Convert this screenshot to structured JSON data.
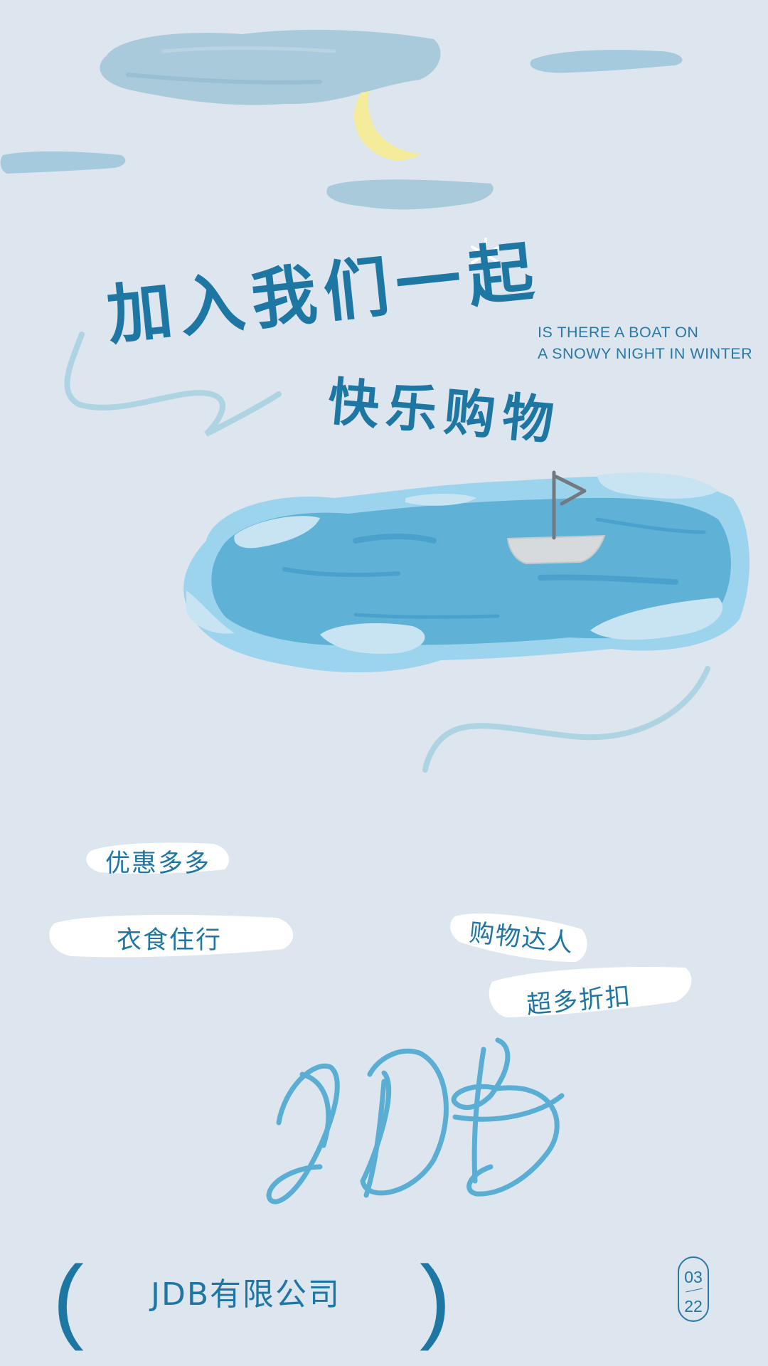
{
  "heading": {
    "line1": "加入我们一起",
    "line2": "快乐购物"
  },
  "subheading": {
    "line1": "IS THERE A BOAT ON",
    "line2": "A SNOWY NIGHT IN WINTER"
  },
  "tags": {
    "discounts_many": "优惠多多",
    "food_clothing_housing_travel": "衣食住行",
    "shopping_expert": "购物达人",
    "super_discounts": "超多折扣"
  },
  "logo_script": "JDB",
  "footer": {
    "paren_left": "(",
    "company": "JDB有限公司",
    "paren_right": ")",
    "date_month": "03",
    "date_day": "22"
  },
  "colors": {
    "background": "#dde5ef",
    "accent": "#1e77a3",
    "pond": "#5fb1d6",
    "cloud": "#a9cadb",
    "moon": "#f4ec9a"
  },
  "icons": [
    "cloud-icon",
    "moon-icon",
    "snowflake-icon",
    "boat-icon",
    "flag-icon"
  ]
}
